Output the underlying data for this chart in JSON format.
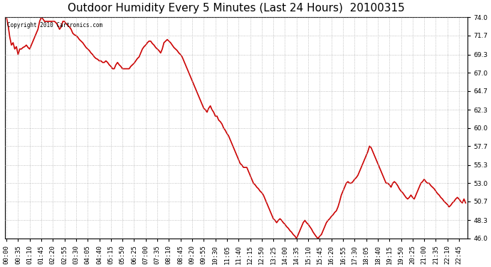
{
  "title": "Outdoor Humidity Every 5 Minutes (Last 24 Hours)  20100315",
  "copyright_text": "Copyright 2010 Cartronics.com",
  "line_color": "#cc0000",
  "bg_color": "#ffffff",
  "grid_color": "#b0b0b0",
  "ylim": [
    46.0,
    74.0
  ],
  "yticks": [
    46.0,
    48.3,
    50.7,
    53.0,
    55.3,
    57.7,
    60.0,
    62.3,
    64.7,
    67.0,
    69.3,
    71.7,
    74.0
  ],
  "humidity_values": [
    74.0,
    73.0,
    71.5,
    70.5,
    70.8,
    70.0,
    70.3,
    69.3,
    70.0,
    70.0,
    70.2,
    70.3,
    70.5,
    70.2,
    70.0,
    70.5,
    71.0,
    71.5,
    72.0,
    72.5,
    73.5,
    74.0,
    73.8,
    73.5,
    73.5,
    73.5,
    73.5,
    73.5,
    73.5,
    73.5,
    73.3,
    73.0,
    72.5,
    72.8,
    73.5,
    73.5,
    73.2,
    73.0,
    72.8,
    72.5,
    72.0,
    71.8,
    71.7,
    71.5,
    71.2,
    71.0,
    70.8,
    70.5,
    70.2,
    70.0,
    69.8,
    69.5,
    69.3,
    69.0,
    68.8,
    68.7,
    68.5,
    68.5,
    68.3,
    68.3,
    68.5,
    68.3,
    68.0,
    67.8,
    67.5,
    67.5,
    68.0,
    68.3,
    68.0,
    67.8,
    67.5,
    67.5,
    67.5,
    67.5,
    67.5,
    67.8,
    68.0,
    68.2,
    68.5,
    68.8,
    69.0,
    69.5,
    70.0,
    70.3,
    70.5,
    70.8,
    71.0,
    71.0,
    70.7,
    70.5,
    70.2,
    70.0,
    69.8,
    69.5,
    70.0,
    70.8,
    71.0,
    71.2,
    71.0,
    70.8,
    70.5,
    70.2,
    70.0,
    69.8,
    69.5,
    69.3,
    69.0,
    68.5,
    68.0,
    67.5,
    67.0,
    66.5,
    66.0,
    65.5,
    65.0,
    64.5,
    64.0,
    63.5,
    63.0,
    62.5,
    62.3,
    62.0,
    62.5,
    62.8,
    62.3,
    62.0,
    61.5,
    61.5,
    61.0,
    60.8,
    60.5,
    60.0,
    59.7,
    59.3,
    59.0,
    58.5,
    58.0,
    57.5,
    57.0,
    56.5,
    56.0,
    55.5,
    55.3,
    55.0,
    55.0,
    55.0,
    54.5,
    54.0,
    53.5,
    53.0,
    52.8,
    52.5,
    52.3,
    52.0,
    51.8,
    51.5,
    51.0,
    50.5,
    50.0,
    49.5,
    49.0,
    48.5,
    48.3,
    48.0,
    48.3,
    48.5,
    48.3,
    48.0,
    47.8,
    47.5,
    47.3,
    47.0,
    46.8,
    46.5,
    46.3,
    46.0,
    46.5,
    47.0,
    47.5,
    48.0,
    48.3,
    48.0,
    47.8,
    47.5,
    47.2,
    46.8,
    46.5,
    46.2,
    46.0,
    46.3,
    46.5,
    47.0,
    47.5,
    48.0,
    48.3,
    48.5,
    48.8,
    49.0,
    49.3,
    49.5,
    50.0,
    50.7,
    51.5,
    52.0,
    52.5,
    53.0,
    53.2,
    53.0,
    53.0,
    53.2,
    53.5,
    53.7,
    54.0,
    54.5,
    55.0,
    55.5,
    56.0,
    56.5,
    57.0,
    57.7,
    57.5,
    57.0,
    56.5,
    56.0,
    55.5,
    55.0,
    54.5,
    54.0,
    53.5,
    53.0,
    53.0,
    52.8,
    52.5,
    53.0,
    53.2,
    53.0,
    52.7,
    52.3,
    52.0,
    51.8,
    51.5,
    51.2,
    51.0,
    51.2,
    51.5,
    51.2,
    51.0,
    51.5,
    52.0,
    52.5,
    53.0,
    53.2,
    53.5,
    53.2,
    53.0,
    53.0,
    52.7,
    52.5,
    52.3,
    52.0,
    51.7,
    51.5,
    51.2,
    51.0,
    50.7,
    50.5,
    50.3,
    50.0,
    50.2,
    50.5,
    50.7,
    51.0,
    51.2,
    51.0,
    50.7,
    50.5,
    51.0,
    50.5
  ],
  "title_fontsize": 11,
  "tick_fontsize": 6.5,
  "line_width": 1.2,
  "xlabel_every_n": 3
}
